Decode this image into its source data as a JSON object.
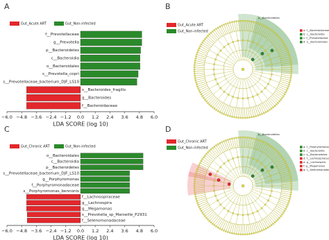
{
  "panel_labels": [
    "A",
    "B",
    "C",
    "D"
  ],
  "chart_data": [
    {
      "type": "bar",
      "orientation": "horizontal",
      "xlabel": "LDA SCORE (log 10)",
      "categories": [
        "f__Prevotellaceae",
        "g__Prevotella",
        "p__Bacteroidetes",
        "c__Bacteroidia",
        "o__Bacteroidales",
        "s__Prevotella_copri",
        "s__Prevotellaceae_bacterium_DJF_LS10",
        "s__Bacteroides_fragilis",
        "g__Bacteroides",
        "f__Bacteroidaceae"
      ],
      "series": [
        {
          "name": "Gut_Acute ART",
          "color": "#e3272c",
          "values": [
            null,
            null,
            null,
            null,
            null,
            null,
            null,
            -4.4,
            -4.4,
            -4.4
          ]
        },
        {
          "name": "Gut_Non-infected",
          "color": "#2a8a2a",
          "values": [
            5.0,
            5.0,
            4.9,
            4.85,
            4.85,
            4.7,
            4.6,
            null,
            null,
            null
          ]
        }
      ],
      "xlim": [
        -6.0,
        6.0
      ],
      "xticks": [
        {
          "value": -6.0,
          "label": "−6.0"
        },
        {
          "value": -4.8,
          "label": "−4.8"
        },
        {
          "value": -3.6,
          "label": "−3.6"
        },
        {
          "value": -2.4,
          "label": "−2.4"
        },
        {
          "value": -1.2,
          "label": "−1.2"
        },
        {
          "value": 0,
          "label": "0.0"
        },
        {
          "value": 1.2,
          "label": "1.2"
        },
        {
          "value": 2.4,
          "label": "2.4"
        },
        {
          "value": 3.6,
          "label": "3.6"
        },
        {
          "value": 4.8,
          "label": "4.8"
        },
        {
          "value": 6.0,
          "label": "6.0"
        }
      ]
    },
    {
      "type": "bar",
      "orientation": "horizontal",
      "xlabel": "LDA SCORE (log 10)",
      "categories": [
        "o__Bacteroidales",
        "c__Bacteroidia",
        "p__Bacteroidetes",
        "s__Prevotellaceae_bacterium_DJF_LS10",
        "g__Porphyromonas",
        "f__Porphyromonadaceae",
        "s__Porphyromonas_bennonis",
        "f__Lachnospiraceae",
        "g__Lachnospira",
        "g__Megamonas",
        "s__Prevotella_sp_Marseille_P2931",
        "f__Selenomonadaceae"
      ],
      "series": [
        {
          "name": "Gut_Chronic ART",
          "color": "#e3272c",
          "values": [
            null,
            null,
            null,
            null,
            null,
            null,
            null,
            -4.4,
            -4.4,
            -4.4,
            -4.35,
            -4.35
          ]
        },
        {
          "name": "Gut_Non-infected",
          "color": "#2a8a2a",
          "values": [
            5.1,
            5.1,
            5.1,
            4.0,
            4.0,
            4.0,
            4.0,
            null,
            null,
            null,
            null,
            null
          ]
        }
      ],
      "xlim": [
        -6.0,
        6.0
      ],
      "xticks": [
        {
          "value": -6.0,
          "label": "−6.0"
        },
        {
          "value": -4.8,
          "label": "−4.8"
        },
        {
          "value": -3.6,
          "label": "−3.6"
        },
        {
          "value": -2.4,
          "label": "−2.4"
        },
        {
          "value": -1.2,
          "label": "−1.2"
        },
        {
          "value": 0,
          "label": "0.0"
        },
        {
          "value": 1.2,
          "label": "1.2"
        },
        {
          "value": 2.4,
          "label": "2.4"
        },
        {
          "value": 3.6,
          "label": "3.6"
        },
        {
          "value": 4.8,
          "label": "4.8"
        },
        {
          "value": 6.0,
          "label": "6.0"
        }
      ]
    }
  ],
  "cladograms": [
    {
      "legend": [
        {
          "name": "Gut_Acute ART",
          "color": "#e3272c"
        },
        {
          "name": "Gut_Non-infected",
          "color": "#2a8a2a"
        }
      ],
      "outer_label": "p__Bacteroidetes",
      "key": [
        {
          "text": "a: f__Bacteroidaceae",
          "color": "#e3272c"
        },
        {
          "text": "b: c__Bacteroidia",
          "color": "#2a8a2a"
        },
        {
          "text": "c: f__Prevotellaceae",
          "color": "#2a8a2a"
        },
        {
          "text": "d: o__Bacteroidales",
          "color": "#2a8a2a"
        }
      ]
    },
    {
      "legend": [
        {
          "name": "Gut_Chronic ART",
          "color": "#e3272c"
        },
        {
          "name": "Gut_Non-infected",
          "color": "#2a8a2a"
        }
      ],
      "outer_label": "p__Bacteroidetes",
      "key": [
        {
          "text": "a: f__Porphyromonadaceae",
          "color": "#2a8a2a"
        },
        {
          "text": "b: c__Bacteroidia",
          "color": "#2a8a2a"
        },
        {
          "text": "c: o__Bacteroidales",
          "color": "#2a8a2a"
        },
        {
          "text": "d: f__Lachnospiraceae",
          "color": "#e3272c"
        },
        {
          "text": "e: g__Lachnospira",
          "color": "#e3272c"
        },
        {
          "text": "f: g__Megamonas",
          "color": "#e3272c"
        },
        {
          "text": "g: f__Selenomonadaceae",
          "color": "#e3272c"
        }
      ]
    }
  ]
}
